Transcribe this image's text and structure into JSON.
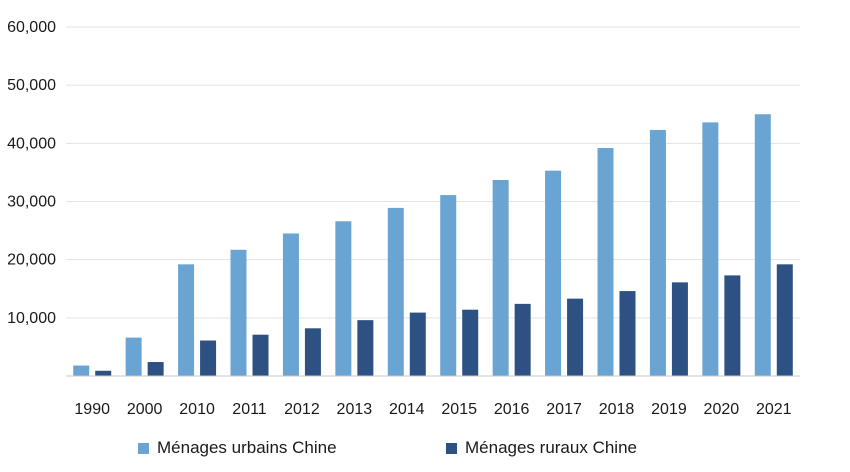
{
  "chart_data": {
    "type": "bar",
    "categories": [
      "1990",
      "2000",
      "2010",
      "2011",
      "2012",
      "2013",
      "2014",
      "2015",
      "2016",
      "2017",
      "2018",
      "2019",
      "2020",
      "2021"
    ],
    "series": [
      {
        "name": "Ménages urbains Chine",
        "color": "#6aa4d3",
        "values": [
          1800,
          6600,
          19200,
          21700,
          24500,
          26600,
          28900,
          31100,
          33700,
          35300,
          39200,
          42300,
          43600,
          45000
        ]
      },
      {
        "name": "Ménages ruraux Chine",
        "color": "#2e5183",
        "values": [
          900,
          2400,
          6100,
          7100,
          8200,
          9600,
          10900,
          11400,
          12400,
          13300,
          14600,
          16100,
          17300,
          19200
        ]
      }
    ],
    "ylim": [
      0,
      60000
    ],
    "yticks": [
      {
        "value": 10000,
        "label": "10,000"
      },
      {
        "value": 20000,
        "label": "20,000"
      },
      {
        "value": 30000,
        "label": "30,000"
      },
      {
        "value": 40000,
        "label": "40,000"
      },
      {
        "value": 50000,
        "label": "50,000"
      },
      {
        "value": 60000,
        "label": "60,000"
      }
    ],
    "grid": true,
    "legend_position": "bottom"
  }
}
